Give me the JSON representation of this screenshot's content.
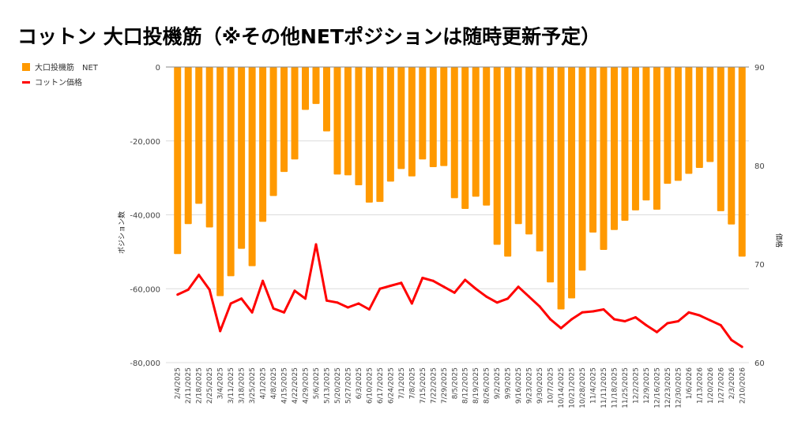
{
  "chart_data": {
    "type": "bar+line",
    "title": "コットン 大口投機筋（※その他NETポジションは随時更新予定）",
    "categories": [
      "2/4/2025",
      "2/11/2025",
      "2/18/2025",
      "2/25/2025",
      "3/4/2025",
      "3/11/2025",
      "3/18/2025",
      "3/25/2025",
      "4/1/2025",
      "4/8/2025",
      "4/15/2025",
      "4/22/2025",
      "4/29/2025",
      "5/6/2025",
      "5/13/2025",
      "5/20/2025",
      "5/27/2025",
      "6/3/2025",
      "6/10/2025",
      "6/17/2025",
      "6/24/2025",
      "7/1/2025",
      "7/8/2025",
      "7/15/2025",
      "7/22/2025",
      "7/29/2025",
      "8/5/2025",
      "8/12/2025",
      "8/19/2025",
      "8/26/2025",
      "9/2/2025",
      "9/9/2025",
      "9/16/2025",
      "9/23/2025",
      "9/30/2025",
      "10/7/2025",
      "10/14/2025",
      "10/21/2025",
      "10/28/2025",
      "11/4/2025",
      "11/11/2025",
      "11/18/2025",
      "11/25/2025",
      "12/2/2025",
      "12/9/2025",
      "12/16/2025",
      "12/23/2025",
      "12/30/2025",
      "1/6/2026",
      "1/13/2026",
      "1/20/2026",
      "1/27/2026",
      "2/3/2026",
      "2/10/2026"
    ],
    "series": [
      {
        "name": "大口投機筋　NET",
        "type": "bar",
        "axis": "left",
        "color": "#ff9900",
        "values": [
          -50600,
          -42500,
          -37000,
          -43400,
          -62000,
          -56600,
          -49200,
          -53900,
          -41900,
          -34900,
          -28400,
          -25000,
          -11600,
          -10000,
          -17400,
          -29100,
          -29300,
          -32000,
          -36700,
          -36500,
          -31000,
          -27600,
          -29600,
          -25000,
          -27100,
          -26800,
          -35500,
          -38400,
          -35100,
          -37500,
          -48100,
          -51300,
          -42500,
          -45300,
          -49900,
          -58300,
          -65600,
          -62600,
          -55100,
          -44800,
          -49500,
          -44100,
          -41600,
          -38800,
          -36100,
          -38600,
          -31600,
          -30800,
          -28900,
          -27300,
          -25700,
          -39000,
          -42600,
          -51300
        ]
      },
      {
        "name": "コットン価格",
        "type": "line",
        "axis": "right",
        "color": "#ff0000",
        "values": [
          66.9,
          67.4,
          68.9,
          67.4,
          63.2,
          66.0,
          66.5,
          65.1,
          68.3,
          65.5,
          65.1,
          67.3,
          66.5,
          72.0,
          66.3,
          66.1,
          65.6,
          66.0,
          65.4,
          67.5,
          67.8,
          68.1,
          66.0,
          68.6,
          68.3,
          67.7,
          67.1,
          68.4,
          67.5,
          66.7,
          66.1,
          66.5,
          67.7,
          66.7,
          65.7,
          64.4,
          63.5,
          64.4,
          65.1,
          65.2,
          65.4,
          64.4,
          64.2,
          64.6,
          63.8,
          63.1,
          64.0,
          64.2,
          65.1,
          64.8,
          64.3,
          63.8,
          62.3,
          61.6
        ]
      }
    ],
    "ylabel": "ポジション数",
    "y2label": "価格",
    "ylim": [
      -80000,
      0
    ],
    "y2lim": [
      60,
      90
    ],
    "yticks": [
      "0",
      "-20,000",
      "-40,000",
      "-60,000",
      "-80,000"
    ],
    "y2ticks": [
      "90",
      "80",
      "70",
      "60"
    ],
    "grid": true,
    "legend_position": "top-left"
  }
}
